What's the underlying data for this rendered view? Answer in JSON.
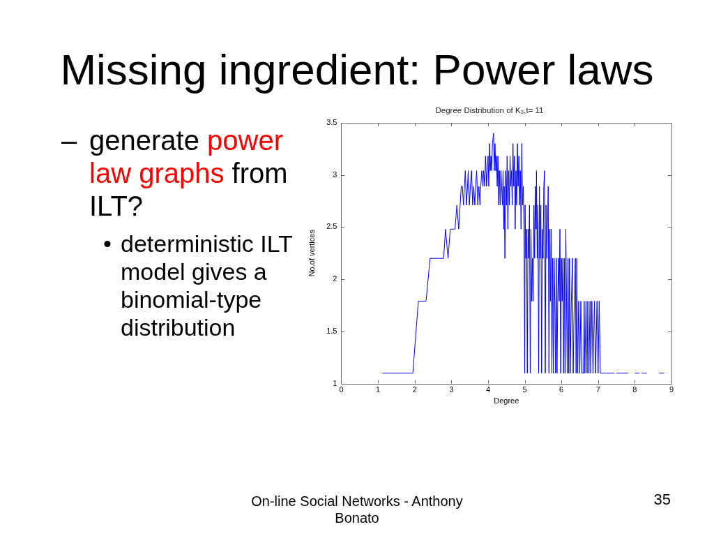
{
  "chart_data": {
    "type": "line",
    "title": "Missing ingredient: Power laws",
    "subtitle": "Degree Distribution of K₃,t= 11",
    "xlabel": "Degree",
    "ylabel": "No.of vertices",
    "annotations": [
      "–",
      "generate",
      "power",
      "law graphs",
      "from",
      "ILT?",
      "•",
      "deterministic ILT model gives a binomial-type distribution",
      "On-line Social Networks - Anthony Bonato",
      "35"
    ],
    "color": "#0000ff",
    "marker": "none",
    "line_style": "solid",
    "grid": false,
    "xlim": [
      0,
      9
    ],
    "xticks": [
      0,
      1,
      2,
      3,
      4,
      5,
      6,
      7,
      8,
      9
    ],
    "ylim": [
      1,
      3.5
    ],
    "yticks": [
      1,
      1.5,
      2,
      2.5,
      3,
      3.5
    ],
    "x": [
      1.12,
      1.95,
      2.1,
      2.31,
      2.42,
      2.79,
      2.84,
      2.91,
      2.97,
      3.1,
      3.15,
      3.2,
      3.27,
      3.3,
      3.33,
      3.38,
      3.41,
      3.44,
      3.46,
      3.49,
      3.52,
      3.55,
      3.58,
      3.61,
      3.64,
      3.66,
      3.69,
      3.72,
      3.75,
      3.78,
      3.8,
      3.83,
      3.86,
      3.88,
      3.91,
      3.93,
      3.96,
      3.98,
      4.0,
      4.02,
      4.04,
      4.06,
      4.08,
      4.1,
      4.12,
      4.15,
      4.17,
      4.19,
      4.21,
      4.23,
      4.25,
      4.27,
      4.29,
      4.31,
      4.33,
      4.35,
      4.37,
      4.39,
      4.41,
      4.43,
      4.44,
      4.46,
      4.48,
      4.5,
      4.52,
      4.54,
      4.56,
      4.58,
      4.6,
      4.62,
      4.64,
      4.66,
      4.68,
      4.7,
      4.72,
      4.74,
      4.76,
      4.78,
      4.8,
      4.82,
      4.84,
      4.86,
      4.88,
      4.9,
      4.92,
      4.94,
      4.96,
      4.98,
      5.0,
      5.01,
      5.03,
      5.05,
      5.07,
      5.09,
      5.11,
      5.13,
      5.15,
      5.17,
      5.19,
      5.21,
      5.23,
      5.25,
      5.27,
      5.29,
      5.31,
      5.32,
      5.34,
      5.36,
      5.38,
      5.4,
      5.42,
      5.44,
      5.46,
      5.48,
      5.5,
      5.52,
      5.54,
      5.56,
      5.58,
      5.6,
      5.62,
      5.64,
      5.66,
      5.68,
      5.7,
      5.72,
      5.74,
      5.76,
      5.78,
      5.8,
      5.82,
      5.84,
      5.86,
      5.88,
      5.9,
      5.92,
      5.94,
      5.96,
      5.98,
      6.0,
      6.02,
      6.04,
      6.06,
      6.08,
      6.1,
      6.12,
      6.14,
      6.16,
      6.18,
      6.2,
      6.22,
      6.24,
      6.27,
      6.3,
      6.32,
      6.35,
      6.38,
      6.4,
      6.42,
      6.44,
      6.47,
      6.5,
      6.53,
      6.56,
      6.6,
      6.62,
      6.64,
      6.67,
      6.7,
      6.72,
      6.75,
      6.78,
      6.8,
      6.83,
      6.86,
      6.9,
      6.93,
      6.97,
      7.0,
      7.03,
      7.06,
      7.45,
      7.47,
      7.5,
      7.82,
      7.9,
      8.0,
      8.13,
      8.16,
      8.19,
      8.33,
      8.5,
      8.66,
      8.8
    ],
    "values": [
      1.1,
      1.1,
      1.79,
      1.79,
      2.2,
      2.2,
      2.48,
      2.2,
      2.48,
      2.48,
      2.71,
      2.48,
      2.89,
      2.89,
      2.71,
      3.04,
      2.71,
      2.89,
      3.04,
      2.71,
      2.89,
      3.04,
      2.71,
      2.89,
      2.71,
      2.89,
      3.04,
      2.71,
      2.89,
      2.71,
      2.89,
      3.04,
      2.89,
      3.04,
      2.89,
      3.18,
      2.89,
      3.04,
      3.18,
      2.89,
      3.3,
      3.04,
      3.18,
      3.04,
      3.3,
      3.4,
      3.04,
      3.3,
      3.04,
      3.18,
      2.89,
      3.18,
      2.71,
      3.04,
      2.71,
      3.04,
      2.89,
      2.71,
      3.04,
      2.48,
      2.89,
      2.2,
      3.04,
      2.71,
      3.18,
      2.48,
      3.04,
      2.71,
      3.18,
      2.89,
      3.04,
      2.71,
      3.3,
      2.89,
      3.18,
      2.48,
      3.04,
      2.71,
      3.3,
      2.89,
      3.18,
      2.71,
      3.04,
      2.48,
      3.3,
      2.71,
      2.89,
      2.48,
      1.1,
      2.71,
      2.2,
      2.48,
      1.1,
      2.48,
      2.2,
      2.71,
      1.1,
      2.48,
      1.79,
      2.2,
      1.79,
      2.71,
      2.2,
      2.89,
      2.48,
      3.04,
      2.2,
      2.71,
      1.1,
      2.89,
      2.2,
      2.71,
      1.1,
      2.48,
      2.2,
      2.89,
      3.04,
      1.1,
      2.71,
      2.2,
      2.48,
      2.89,
      1.1,
      2.48,
      1.79,
      2.48,
      1.1,
      2.2,
      1.1,
      2.2,
      1.79,
      1.1,
      2.2,
      1.1,
      1.79,
      2.2,
      1.79,
      2.48,
      1.1,
      2.2,
      1.79,
      2.2,
      1.1,
      2.2,
      1.1,
      2.48,
      1.79,
      1.1,
      2.2,
      1.1,
      2.2,
      1.1,
      1.79,
      2.2,
      1.1,
      1.79,
      2.2,
      1.1,
      2.2,
      1.1,
      1.79,
      1.1,
      1.79,
      1.1,
      1.1,
      1.79,
      1.1,
      1.79,
      1.1,
      1.79,
      1.1,
      1.79,
      1.1,
      1.79,
      1.1,
      1.79,
      1.1,
      1.79,
      1.1,
      1.79,
      1.1,
      1.1,
      null,
      1.1,
      1.1,
      null,
      1.1,
      1.1,
      null,
      1.1,
      1.1,
      null,
      1.1,
      1.1
    ]
  }
}
